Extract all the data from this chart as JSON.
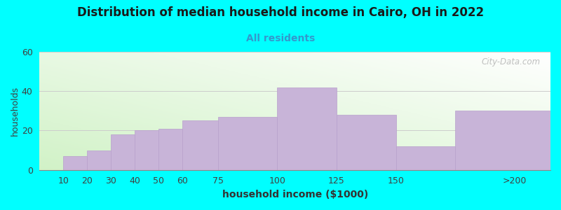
{
  "title": "Distribution of median household income in Cairo, OH in 2022",
  "subtitle": "All residents",
  "xlabel": "household income ($1000)",
  "ylabel": "households",
  "background_color": "#00FFFF",
  "bar_color": "#c8b4d8",
  "bar_edge_color": "#b8a0cc",
  "categories": [
    "10",
    "20",
    "30",
    "40",
    "50",
    "60",
    "75",
    "100",
    "125",
    "150",
    ">200"
  ],
  "x_positions": [
    10,
    20,
    30,
    40,
    50,
    60,
    75,
    100,
    125,
    150,
    175
  ],
  "x_widths": [
    10,
    10,
    10,
    10,
    10,
    15,
    25,
    25,
    25,
    25,
    40
  ],
  "values": [
    7,
    10,
    18,
    20,
    21,
    25,
    27,
    42,
    28,
    12,
    30
  ],
  "ylim": [
    0,
    60
  ],
  "yticks": [
    0,
    20,
    40,
    60
  ],
  "xlim": [
    0,
    215
  ],
  "xtick_positions": [
    10,
    20,
    30,
    40,
    50,
    60,
    75,
    100,
    125,
    150,
    200
  ],
  "xtick_labels": [
    "10",
    "20",
    "30",
    "40",
    "50",
    "60",
    "75",
    "100",
    "125",
    "150",
    ">200"
  ],
  "watermark": "City-Data.com",
  "title_fontsize": 12,
  "subtitle_fontsize": 10,
  "label_fontsize": 9
}
